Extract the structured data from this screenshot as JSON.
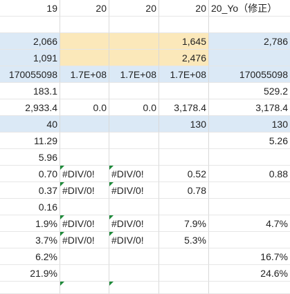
{
  "rows": [
    {
      "c0": "19",
      "c1": "20",
      "c2": "20",
      "c3": "20",
      "c4": "20_Yo（修正）"
    },
    {
      "c0": "",
      "c1": "",
      "c2": "",
      "c3": "",
      "c4": ""
    },
    {
      "c0": "2,066",
      "c1": "",
      "c2": "",
      "c3": "1,645",
      "c4": "2,786"
    },
    {
      "c0": "1,091",
      "c1": "",
      "c2": "",
      "c3": "2,476",
      "c4": ""
    },
    {
      "c0": "170055098",
      "c1": "1.7E+08",
      "c2": "1.7E+08",
      "c3": "1.7E+08",
      "c4": "170055098"
    },
    {
      "c0": "183.1",
      "c1": "",
      "c2": "",
      "c3": "",
      "c4": "529.2"
    },
    {
      "c0": "2,933.4",
      "c1": "0.0",
      "c2": "0.0",
      "c3": "3,178.4",
      "c4": "3,178.4"
    },
    {
      "c0": "40",
      "c1": "",
      "c2": "",
      "c3": "130",
      "c4": "130"
    },
    {
      "c0": "11.29",
      "c1": "",
      "c2": "",
      "c3": "",
      "c4": "5.26"
    },
    {
      "c0": "5.96",
      "c1": "",
      "c2": "",
      "c3": "",
      "c4": ""
    },
    {
      "c0": "0.70",
      "c1": "#DIV/0!",
      "c2": "#DIV/0!",
      "c3": "0.52",
      "c4": "0.88"
    },
    {
      "c0": "0.37",
      "c1": "#DIV/0!",
      "c2": "#DIV/0!",
      "c3": "0.78",
      "c4": ""
    },
    {
      "c0": "0.16",
      "c1": "",
      "c2": "",
      "c3": "",
      "c4": ""
    },
    {
      "c0": "1.9%",
      "c1": "#DIV/0!",
      "c2": "#DIV/0!",
      "c3": "7.9%",
      "c4": "4.7%"
    },
    {
      "c0": "3.7%",
      "c1": "#DIV/0!",
      "c2": "#DIV/0!",
      "c3": "5.3%",
      "c4": ""
    },
    {
      "c0": "6.2%",
      "c1": "",
      "c2": "",
      "c3": "",
      "c4": "16.7%"
    },
    {
      "c0": "21.9%",
      "c1": "",
      "c2": "",
      "c3": "",
      "c4": "24.6%"
    },
    {
      "c0": "",
      "c1": "",
      "c2": "",
      "c3": "",
      "c4": ""
    }
  ]
}
